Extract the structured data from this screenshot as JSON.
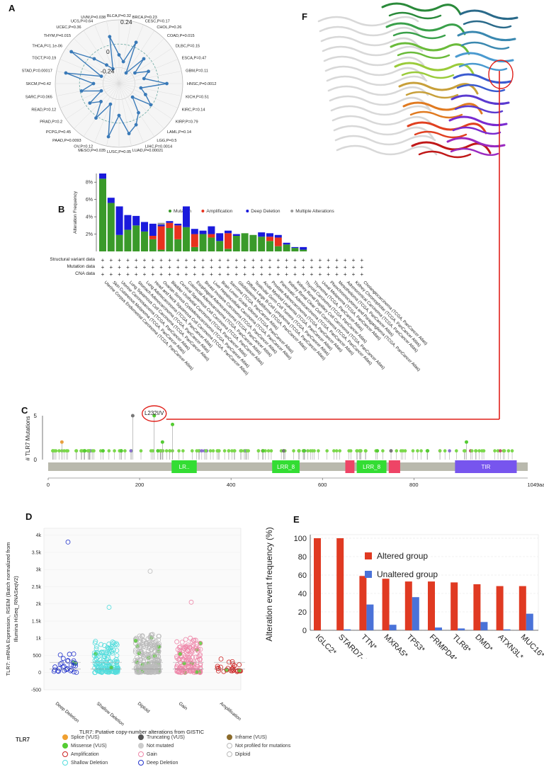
{
  "panels": {
    "A": {
      "label": "A",
      "ring_labels": [
        "0.24",
        "0",
        "-0.24"
      ],
      "cancers": [
        {
          "name": "BLCA,P=0.32",
          "r": 0.45
        },
        {
          "name": "BRCA,P=0.23",
          "r": 0.35
        },
        {
          "name": "CESC,P=0.17",
          "r": 0.7
        },
        {
          "name": "CHOL,P=0.26",
          "r": 0.2
        },
        {
          "name": "COAD,P=0.015",
          "r": 0.55
        },
        {
          "name": "DLBC,P=0.15",
          "r": 0.3
        },
        {
          "name": "ESCA,P=0.47",
          "r": 0.5
        },
        {
          "name": "GBM,P=0.11",
          "r": 0.4
        },
        {
          "name": "HNSC,P=0.0012",
          "r": 0.75
        },
        {
          "name": "KICH,P=0.51",
          "r": 0.35
        },
        {
          "name": "KIRC,P=0.14",
          "r": 0.45
        },
        {
          "name": "KIRP,P=0.79",
          "r": 0.6
        },
        {
          "name": "LAML,P=0.14",
          "r": 0.3
        },
        {
          "name": "LGG,P=0.5",
          "r": 0.55
        },
        {
          "name": "LIHC,P=0.0014",
          "r": 0.7
        },
        {
          "name": "LUAD,P=0.00021",
          "r": 0.8
        },
        {
          "name": "LUSC,P=0.05",
          "r": 0.5
        },
        {
          "name": "MESO,P=0.035",
          "r": 0.85
        },
        {
          "name": "OV,P=0.12",
          "r": 0.35
        },
        {
          "name": "PAAD,P=0.0093",
          "r": 0.65
        },
        {
          "name": "PCPG,P=0.45",
          "r": 0.4
        },
        {
          "name": "PRAD,P=0.2",
          "r": 0.55
        },
        {
          "name": "READ,P=0.12",
          "r": 0.3
        },
        {
          "name": "SARC,P=0.065",
          "r": 0.6
        },
        {
          "name": "SKCM,P=0.42",
          "r": 0.4
        },
        {
          "name": "STAD,P=0.00017",
          "r": 0.85
        },
        {
          "name": "TGCT,P=0.19",
          "r": 0.3
        },
        {
          "name": "THCA,P=1.1e-06",
          "r": 0.9
        },
        {
          "name": "THYM,P=0.015",
          "r": 0.55
        },
        {
          "name": "UCEC,P=0.36",
          "r": 0.35
        },
        {
          "name": "UCS,P=0.64",
          "r": 0.25
        },
        {
          "name": "UVM,P=0.038",
          "r": 0.75
        }
      ]
    },
    "B": {
      "label": "B",
      "ylabel": "Alteration Frequency",
      "yticks": [
        "2%",
        "4%",
        "6%",
        "8%"
      ],
      "row_labels": [
        "Structural variant data",
        "Mutation data",
        "CNA data"
      ],
      "legend": [
        {
          "name": "Mutation",
          "color": "#3a9a2a"
        },
        {
          "name": "Amplification",
          "color": "#e8321e"
        },
        {
          "name": "Deep Deletion",
          "color": "#1a1adc"
        },
        {
          "name": "Multiple Alterations",
          "color": "#999999"
        }
      ],
      "chart_data": {
        "type": "bar",
        "stacked": true,
        "ylabel": "Alteration Frequency",
        "ylim": [
          0,
          9
        ],
        "categories": [
          "Uterine Corpus Endometrial Carcinoma (TCGA, PanCancer Atlas)",
          "Skin Cutaneous Melanoma (TCGA, PanCancer Atlas)",
          "Uterine Carcinosarcoma (TCGA, PanCancer Atlas)",
          "Lung Squamous Cell Carcinoma (TCGA, PanCancer Atlas)",
          "Stomach Adenocarcinoma (TCGA, PanCancer Atlas)",
          "Lung Adenocarcinoma (TCGA, PanCancer Atlas)",
          "Head and Neck Squamous Cell Carcinoma (TCGA, PanCancer Atlas)",
          "Ovarian Serous Cystadenocarcinoma (TCGA, PanCancer Atlas)",
          "Bladder Urothelial Carcinoma (TCGA, PanCancer Atlas)",
          "Cervical Squamous Cell Carcinoma (TCGA, PanCancer Atlas)",
          "Colorectal Adenocarcinoma (TCGA, PanCancer Atlas)",
          "Esophageal Adenocarcinoma (TCGA, PanCancer Atlas)",
          "Breast Invasive Carcinoma (TCGA, PanCancer Atlas)",
          "Liver Hepatocellular Carcinoma (TCGA, PanCancer Atlas)",
          "Brain Lower Grade Glioma (TCGA, PanCancer Atlas)",
          "Sarcoma (TCGA, PanCancer Atlas)",
          "Glioblastoma Multiforme (TCGA, PanCancer Atlas)",
          "Diffuse Large B-Cell Lymphoma (TCGA, PanCancer Atlas)",
          "Testicular Germ Cell Tumors (TCGA, PanCancer Atlas)",
          "Acute Myeloid Leukemia (TCGA, PanCancer Atlas)",
          "Prostate Adenocarcinoma (TCGA, PanCancer Atlas)",
          "Pancreatic Adenocarcinoma (TCGA, PanCancer Atlas)",
          "Kidney Renal Clear Cell Carcinoma (TCGA, PanCancer Atlas)",
          "Kidney Renal Papillary Cell Carcinoma (TCGA, PanCancer Atlas)",
          "Thyroid Carcinoma (TCGA, PanCancer Atlas)",
          "Thymoma (TCGA, PanCancer Atlas)",
          "Uveal Melanoma (TCGA, PanCancer Atlas)",
          "Pheochromocytoma and Paraganglioma (TCGA, PanCancer Atlas)",
          "Mesothelioma (TCGA, PanCancer Atlas)",
          "Adrenocortical Carcinoma (TCGA, PanCancer Atlas)",
          "Kidney Chromophobe (TCGA, PanCancer Atlas)",
          "Cholangiocarcinoma (TCGA, PanCancer Atlas)"
        ],
        "series": [
          {
            "name": "Mutation",
            "values": [
              8.4,
              5.6,
              1.9,
              2.5,
              3.0,
              2.3,
              1.4,
              0.2,
              2.7,
              1.4,
              2.8,
              0.5,
              2.0,
              1.6,
              1.2,
              0.3,
              1.8,
              2.1,
              1.9,
              1.7,
              1.2,
              0.6,
              0.8,
              0.4,
              0.2,
              0,
              0,
              0,
              0,
              0,
              0,
              0
            ]
          },
          {
            "name": "Amplification",
            "values": [
              0,
              0,
              0,
              0,
              0,
              0,
              0.4,
              2.7,
              0.6,
              1.6,
              0,
              1.5,
              0,
              0.4,
              0,
              1.8,
              0,
              0,
              0,
              0,
              0.5,
              1.0,
              0,
              0,
              0,
              0,
              0,
              0,
              0,
              0,
              0,
              0
            ]
          },
          {
            "name": "Deep Deletion",
            "values": [
              0.6,
              0.6,
              3.3,
              1.7,
              1.1,
              1.1,
              1.4,
              0.2,
              0.2,
              0.2,
              2.4,
              0.6,
              0.4,
              0.9,
              0.9,
              0.3,
              0.2,
              0,
              0,
              0.5,
              0.4,
              0.3,
              0.2,
              0.1,
              0.3,
              0,
              0,
              0,
              0,
              0,
              0,
              0
            ]
          },
          {
            "name": "Multiple Alterations",
            "values": [
              0,
              0,
              0,
              0,
              0,
              0,
              0,
              0.2,
              0,
              0,
              0,
              0,
              0,
              0,
              0,
              0,
              0,
              0,
              0,
              0,
              0,
              0,
              0,
              0,
              0,
              0,
              0,
              0,
              0,
              0,
              0,
              0
            ]
          }
        ]
      }
    },
    "C": {
      "label": "C",
      "ylabel": "# TLR7 Mutations",
      "yticks": [
        "0",
        "5"
      ],
      "xticks": [
        "0",
        "200",
        "400",
        "600",
        "800"
      ],
      "xend_label": "1049aa",
      "annotation": "L232I/V",
      "domains": [
        {
          "name": "LR..",
          "start": 270,
          "end": 325,
          "color": "#33dd33"
        },
        {
          "name": "LRR_8",
          "start": 490,
          "end": 550,
          "color": "#33dd33"
        },
        {
          "name": "",
          "start": 650,
          "end": 670,
          "color": "#ee4466"
        },
        {
          "name": "LRR_8",
          "start": 675,
          "end": 740,
          "color": "#33dd33"
        },
        {
          "name": "",
          "start": 745,
          "end": 770,
          "color": "#ee4466"
        },
        {
          "name": "TIR",
          "start": 890,
          "end": 1025,
          "color": "#7755ee"
        }
      ],
      "chart_data": {
        "type": "scatter",
        "xlabel": "",
        "ylabel": "# TLR7 Mutations",
        "xlim": [
          0,
          1049
        ],
        "ylim": [
          0,
          5
        ],
        "highlight": {
          "label": "L232I/V",
          "x": 232,
          "y": 5
        }
      }
    },
    "D": {
      "label": "D",
      "ylabel_lines": [
        "TLR7: mRNA Expression, RSEM (Batch normalized from",
        "Illumina HiSeq_RNASeqV2)"
      ],
      "xlabel": "TLR7: Putative copy-number alterations from GISTIC",
      "yticks": [
        "-500",
        "0",
        "500",
        "1k",
        "1.5k",
        "2k",
        "2.5k",
        "3k",
        "3.5k",
        "4k"
      ],
      "categories": [
        "Deep Deletion",
        "Shallow Deletion",
        "Diploid",
        "Gain",
        "Amplification"
      ],
      "legend_title": "TLR7",
      "legend": [
        {
          "name": "Splice (VUS)",
          "color": "#f0a030"
        },
        {
          "name": "Truncating (VUS)",
          "color": "#555555"
        },
        {
          "name": "Inframe (VUS)",
          "color": "#8b6b2b"
        },
        {
          "name": "Missense (VUS)",
          "color": "#55cc33"
        },
        {
          "name": "Not mutated",
          "color": "#cccccc"
        },
        {
          "name": "Not profiled for mutations",
          "color": "#ffffff"
        },
        {
          "name": "Amplification",
          "color": "#cc2222"
        },
        {
          "name": "Gain",
          "color": "#ee88aa"
        },
        {
          "name": "Diploid",
          "color": "#bbbbbb"
        },
        {
          "name": "Shallow Deletion",
          "color": "#55dddd"
        },
        {
          "name": "Deep Deletion",
          "color": "#2233cc"
        }
      ],
      "chart_data": {
        "type": "scatter",
        "xlabel": "TLR7: Putative copy-number alterations from GISTIC",
        "ylabel": "TLR7: mRNA Expression, RSEM (Batch normalized from Illumina HiSeq_RNASeqV2)",
        "ylim": [
          -500,
          4200
        ],
        "categories": [
          "Deep Deletion",
          "Shallow Deletion",
          "Diploid",
          "Gain",
          "Amplification"
        ],
        "max_values": [
          3800,
          1900,
          2950,
          2050,
          320
        ]
      }
    },
    "E": {
      "label": "E",
      "ylabel": "Alteration event frequency (%)",
      "yticks": [
        "0",
        "20",
        "40",
        "60",
        "80",
        "100"
      ],
      "chart_data": {
        "type": "bar",
        "ylabel": "Alteration event frequency (%)",
        "ylim": [
          0,
          100
        ],
        "categories": [
          "IGLC2*",
          "STARD7-AS1*",
          "TTN*",
          "MXRA5*",
          "TP53*",
          "FRMPD4*",
          "TLR8*",
          "DMD*",
          "ATXN3L*",
          "MUC16*"
        ],
        "series": [
          {
            "name": "Altered group",
            "color": "#e03a22",
            "values": [
              100,
              100,
              59,
              56,
              53,
              53,
              52,
              50,
              48,
              48
            ]
          },
          {
            "name": "Unaltered group",
            "color": "#4a72d8",
            "values": [
              0,
              1,
              28,
              6,
              36,
              3,
              2,
              9,
              1,
              18
            ]
          }
        ]
      }
    },
    "F": {
      "label": "F"
    }
  }
}
